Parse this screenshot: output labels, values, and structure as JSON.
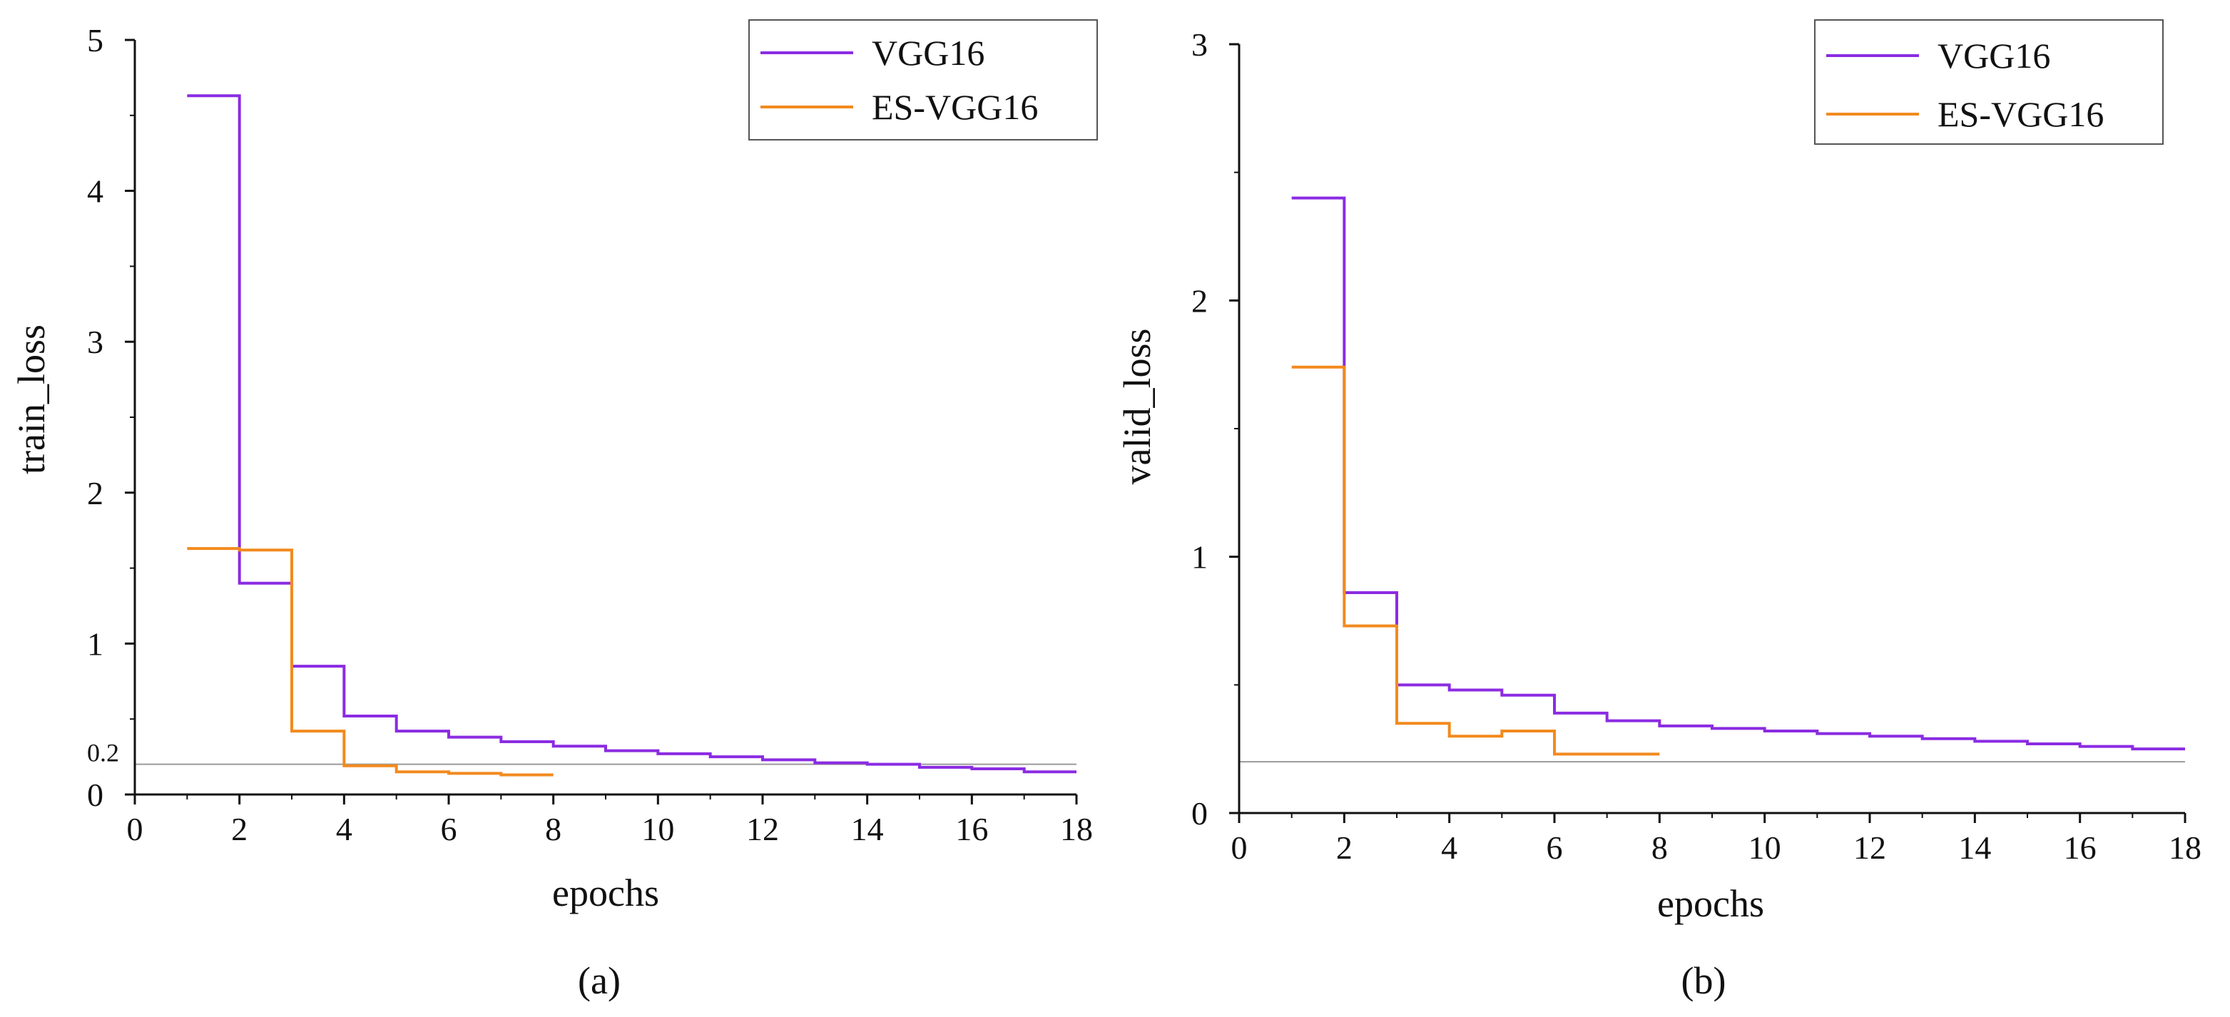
{
  "chart_data": [
    {
      "type": "line",
      "step": "post",
      "caption": "(a)",
      "xlabel": "epochs",
      "ylabel": "train_loss",
      "xlim": [
        0,
        18
      ],
      "ylim": [
        0,
        5
      ],
      "xticks": [
        0,
        2,
        4,
        6,
        8,
        10,
        12,
        14,
        16,
        18
      ],
      "yticks": [
        0,
        1,
        2,
        3,
        4,
        5
      ],
      "extra_ytick": 0.2,
      "reference_line": 0.2,
      "grid": false,
      "legend_position": "top-right",
      "series": [
        {
          "name": "VGG16",
          "color": "#8B2BE2",
          "x": [
            1,
            2,
            3,
            4,
            5,
            6,
            7,
            8,
            9,
            10,
            11,
            12,
            13,
            14,
            15,
            16,
            17,
            18
          ],
          "y": [
            4.63,
            1.4,
            0.85,
            0.52,
            0.42,
            0.38,
            0.35,
            0.32,
            0.29,
            0.27,
            0.25,
            0.23,
            0.21,
            0.2,
            0.18,
            0.17,
            0.15,
            0.15
          ]
        },
        {
          "name": "ES-VGG16",
          "color": "#F28A1E",
          "x": [
            1,
            2,
            3,
            4,
            5,
            6,
            7,
            8
          ],
          "y": [
            1.63,
            1.62,
            0.42,
            0.19,
            0.15,
            0.14,
            0.13,
            0.13
          ]
        }
      ]
    },
    {
      "type": "line",
      "step": "post",
      "caption": "(b)",
      "xlabel": "epochs",
      "ylabel": "valid_loss",
      "xlim": [
        0,
        18
      ],
      "ylim": [
        0,
        3
      ],
      "xticks": [
        0,
        2,
        4,
        6,
        8,
        10,
        12,
        14,
        16,
        18
      ],
      "yticks": [
        0,
        1,
        2,
        3
      ],
      "reference_line": 0.2,
      "grid": false,
      "legend_position": "top-right",
      "series": [
        {
          "name": "VGG16",
          "color": "#8B2BE2",
          "x": [
            1,
            2,
            3,
            4,
            5,
            6,
            7,
            8,
            9,
            10,
            11,
            12,
            13,
            14,
            15,
            16,
            17,
            18
          ],
          "y": [
            2.4,
            0.86,
            0.5,
            0.48,
            0.46,
            0.39,
            0.36,
            0.34,
            0.33,
            0.32,
            0.31,
            0.3,
            0.29,
            0.28,
            0.27,
            0.26,
            0.25,
            0.25
          ]
        },
        {
          "name": "ES-VGG16",
          "color": "#F28A1E",
          "x": [
            1,
            2,
            3,
            4,
            5,
            6,
            7,
            8
          ],
          "y": [
            1.74,
            0.73,
            0.35,
            0.3,
            0.32,
            0.23,
            0.23,
            0.23
          ]
        }
      ]
    }
  ]
}
